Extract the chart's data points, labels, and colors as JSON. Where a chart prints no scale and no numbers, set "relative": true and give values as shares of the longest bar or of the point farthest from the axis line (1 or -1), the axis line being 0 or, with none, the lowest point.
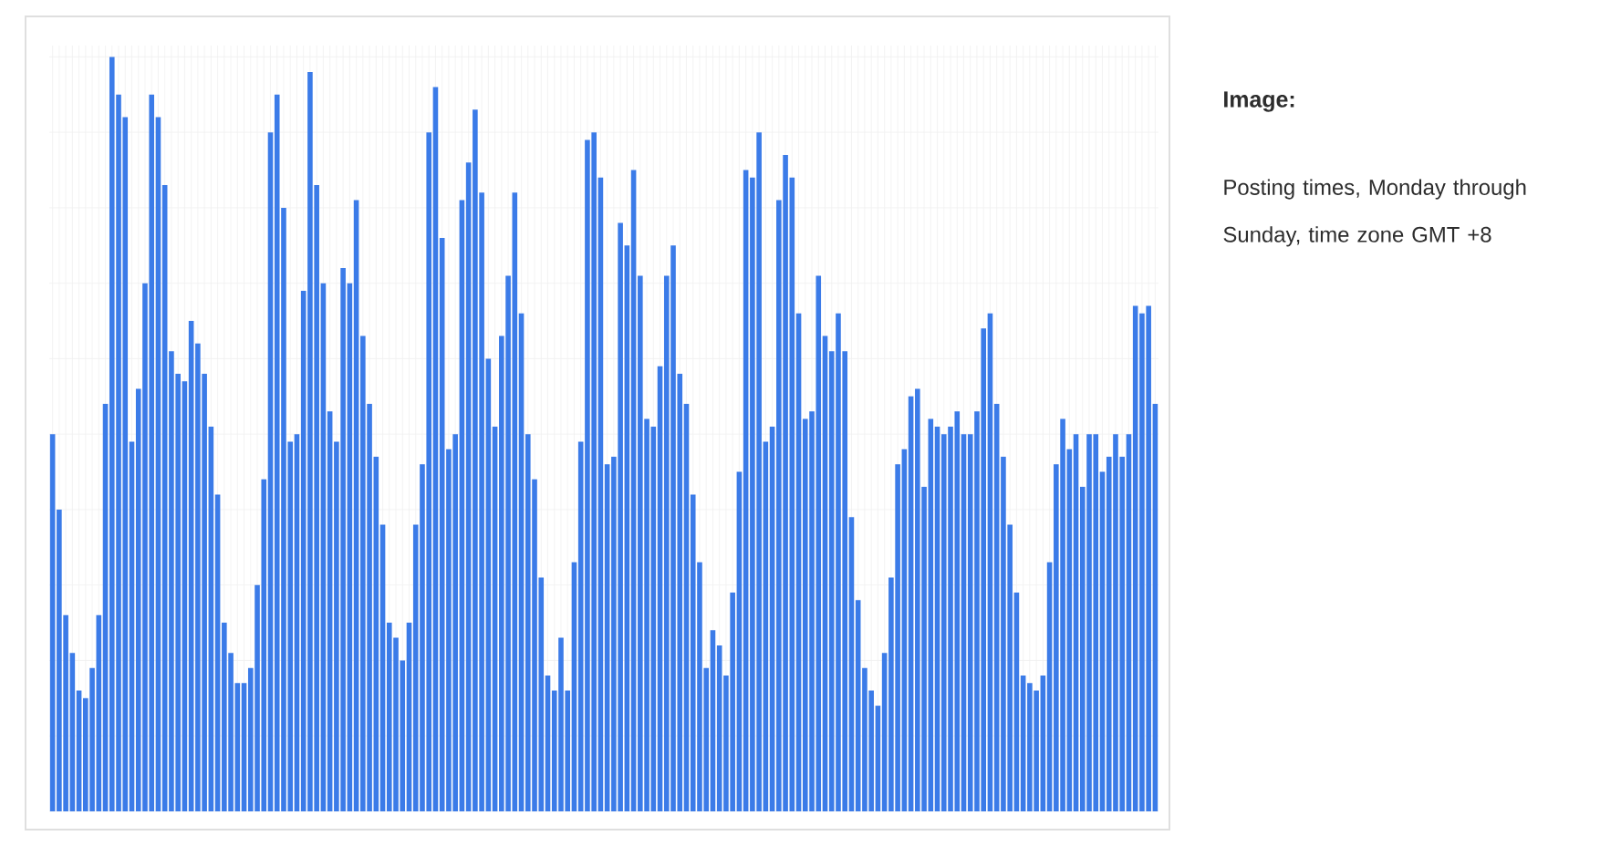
{
  "chart_data": {
    "type": "bar",
    "title": "Image:",
    "subtitle": "Posting times, Monday through Sunday, time zone GMT +8",
    "relative": true,
    "grid": true,
    "color": "#3b7be8",
    "categories": [
      null,
      null,
      null,
      null,
      null,
      null,
      null,
      null,
      null,
      null,
      null,
      null,
      null,
      null,
      null,
      null,
      null,
      null,
      null,
      null,
      null,
      null,
      null,
      null,
      null,
      null,
      null,
      null,
      null,
      null,
      null,
      null,
      null,
      null,
      null,
      null,
      null,
      null,
      null,
      null,
      null,
      null,
      null,
      null,
      null,
      null,
      null,
      null,
      null,
      null,
      null,
      null,
      null,
      null,
      null,
      null,
      null,
      null,
      null,
      null,
      null,
      null,
      null,
      null,
      null,
      null,
      null,
      null,
      null,
      null,
      null,
      null,
      null,
      null,
      null,
      null,
      null,
      null,
      null,
      null,
      null,
      null,
      null,
      null,
      null,
      null,
      null,
      null,
      null,
      null,
      null,
      null,
      null,
      null,
      null,
      null,
      null,
      null,
      null,
      null,
      null,
      null,
      null,
      null,
      null,
      null,
      null,
      null,
      null,
      null,
      null,
      null,
      null,
      null,
      null,
      null,
      null,
      null,
      null,
      null,
      null,
      null,
      null,
      null,
      null,
      null,
      null,
      null,
      null,
      null,
      null,
      null,
      null,
      null,
      null,
      null,
      null,
      null,
      null,
      null,
      null,
      null,
      null,
      null,
      null,
      null,
      null,
      null,
      null,
      null,
      null,
      null,
      null,
      null,
      null,
      null,
      null,
      null,
      null,
      null,
      null,
      null,
      null,
      null,
      null,
      null,
      null,
      null
    ],
    "values": [
      0.5,
      0.4,
      0.26,
      0.21,
      0.16,
      0.15,
      0.19,
      0.26,
      0.54,
      1.0,
      0.95,
      0.92,
      0.49,
      0.56,
      0.7,
      0.95,
      0.92,
      0.83,
      0.61,
      0.58,
      0.57,
      0.65,
      0.62,
      0.58,
      0.51,
      0.42,
      0.25,
      0.21,
      0.17,
      0.17,
      0.19,
      0.3,
      0.44,
      0.9,
      0.95,
      0.8,
      0.49,
      0.5,
      0.69,
      0.98,
      0.83,
      0.7,
      0.53,
      0.49,
      0.72,
      0.7,
      0.81,
      0.63,
      0.54,
      0.47,
      0.38,
      0.25,
      0.23,
      0.2,
      0.25,
      0.38,
      0.46,
      0.9,
      0.96,
      0.76,
      0.48,
      0.5,
      0.81,
      0.86,
      0.93,
      0.82,
      0.6,
      0.51,
      0.63,
      0.71,
      0.82,
      0.66,
      0.5,
      0.44,
      0.31,
      0.18,
      0.16,
      0.23,
      0.16,
      0.33,
      0.49,
      0.89,
      0.9,
      0.84,
      0.46,
      0.47,
      0.78,
      0.75,
      0.85,
      0.71,
      0.52,
      0.51,
      0.59,
      0.71,
      0.75,
      0.58,
      0.54,
      0.42,
      0.33,
      0.19,
      0.24,
      0.22,
      0.18,
      0.29,
      0.45,
      0.85,
      0.84,
      0.9,
      0.49,
      0.51,
      0.81,
      0.87,
      0.84,
      0.66,
      0.52,
      0.53,
      0.71,
      0.63,
      0.61,
      0.66,
      0.61,
      0.39,
      0.28,
      0.19,
      0.16,
      0.14,
      0.21,
      0.31,
      0.46,
      0.48,
      0.55,
      0.56,
      0.43,
      0.52,
      0.51,
      0.5,
      0.51,
      0.53,
      0.5,
      0.5,
      0.53,
      0.64,
      0.66,
      0.54,
      0.47,
      0.38,
      0.29,
      0.18,
      0.17,
      0.16,
      0.18,
      0.33,
      0.46,
      0.52,
      0.48,
      0.5,
      0.43,
      0.5,
      0.5,
      0.45,
      0.47,
      0.5,
      0.47,
      0.5,
      0.67,
      0.66,
      0.67,
      0.54
    ]
  }
}
